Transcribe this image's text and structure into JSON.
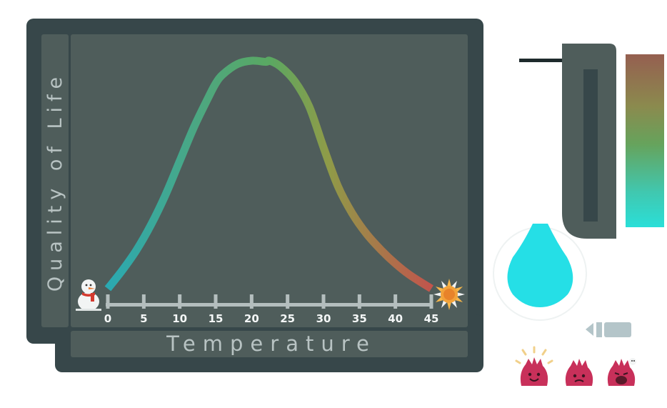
{
  "chart_data": {
    "type": "line",
    "xlabel": "Temperature",
    "ylabel": "Quality of Life",
    "xlim": [
      0,
      45
    ],
    "ylim": [
      0,
      1
    ],
    "x_ticks": [
      "0",
      "5",
      "10",
      "15",
      "20",
      "25",
      "30",
      "35",
      "40",
      "45"
    ],
    "x": [
      0,
      2,
      4,
      6,
      8,
      10,
      12,
      14,
      15,
      16,
      18,
      20,
      22,
      22.5,
      24,
      26,
      28,
      30,
      32,
      34,
      36,
      38,
      40,
      42,
      45
    ],
    "values": [
      0,
      0.08,
      0.17,
      0.28,
      0.41,
      0.56,
      0.71,
      0.84,
      0.9,
      0.94,
      0.985,
      1.0,
      0.995,
      1.0,
      0.975,
      0.91,
      0.8,
      0.62,
      0.45,
      0.33,
      0.24,
      0.17,
      0.11,
      0.06,
      0
    ]
  },
  "colors": {
    "frame": "#37474a",
    "plot_bg": "#4f5d5b",
    "curve_cold": "#2dabb0",
    "curve_mid": "#5aa862",
    "curve_hot": "#c2544c",
    "water": "#25dfe6",
    "meter_top": "#93614f",
    "meter_mid": "#6e9b59",
    "meter_bottom": "#30d7d4",
    "creature": "#c8305a"
  },
  "icons": {
    "cold": "snowman-icon",
    "hot": "sun-icon"
  }
}
